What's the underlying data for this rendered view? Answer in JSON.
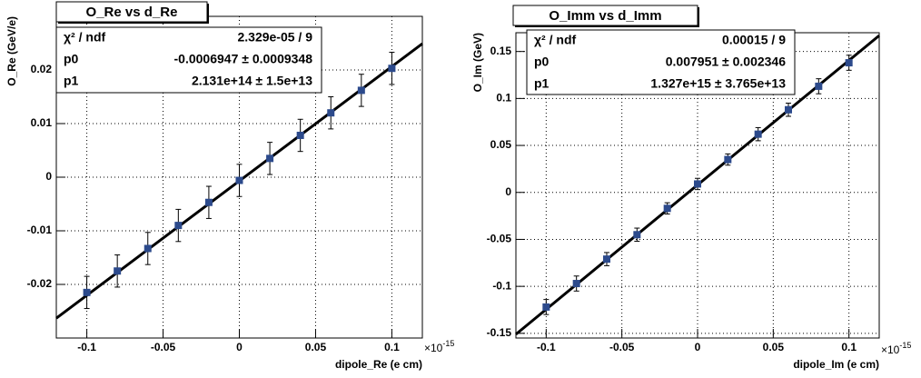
{
  "chart_data": [
    {
      "type": "scatter",
      "title": "O_Re vs d_Re",
      "x_label": "dipole_Re (e cm)",
      "y_label": "O_Re (GeV/e)",
      "x_scale_label": {
        "base": "×10",
        "exponent": "-15"
      },
      "stats": [
        [
          "χ² / ndf",
          "2.329e-05 / 9"
        ],
        [
          "p0",
          "-0.0006947 ± 0.0009348"
        ],
        [
          "p1",
          "2.131e+14 ± 1.5e+13"
        ]
      ],
      "x": [
        -0.1,
        -0.08,
        -0.06,
        -0.04,
        -0.02,
        0,
        0.02,
        0.04,
        0.06,
        0.08,
        0.1
      ],
      "values": [
        -0.0215,
        -0.0175,
        -0.0133,
        -0.009,
        -0.0047,
        -0.0006,
        0.0035,
        0.0078,
        0.012,
        0.0162,
        0.0203
      ],
      "errors": [
        0.003,
        0.003,
        0.003,
        0.003,
        0.003,
        0.003,
        0.003,
        0.003,
        0.003,
        0.003,
        0.003
      ],
      "color": "#2c4a8c",
      "fit": {
        "x": [
          -0.12,
          0.12
        ],
        "values": [
          -0.0263,
          0.0249
        ],
        "color": "#000000"
      },
      "xlim": [
        -0.12,
        0.12
      ],
      "ylim": [
        -0.03,
        0.03
      ],
      "xticks": [
        -0.1,
        -0.05,
        0,
        0.05,
        0.1
      ],
      "yticks": [
        -0.02,
        -0.01,
        0,
        0.01,
        0.02
      ],
      "grid": true
    },
    {
      "type": "scatter",
      "title": "O_Imm vs d_Imm",
      "x_label": "dipole_Im (e cm)",
      "y_label": "O_Im (GeV)",
      "x_scale_label": {
        "base": "×10",
        "exponent": "-15"
      },
      "stats": [
        [
          "χ² / ndf",
          "0.00015 / 9"
        ],
        [
          "p0",
          "0.007951 ± 0.002346"
        ],
        [
          "p1",
          "1.327e+15 ± 3.765e+13"
        ]
      ],
      "x": [
        -0.1,
        -0.08,
        -0.06,
        -0.04,
        -0.02,
        0,
        0.02,
        0.04,
        0.06,
        0.08,
        0.1
      ],
      "values": [
        -0.122,
        -0.097,
        -0.071,
        -0.045,
        -0.017,
        0.009,
        0.035,
        0.062,
        0.088,
        0.113,
        0.138
      ],
      "errors": [
        0.008,
        0.008,
        0.007,
        0.007,
        0.006,
        0.006,
        0.006,
        0.007,
        0.007,
        0.008,
        0.008
      ],
      "color": "#2c4a8c",
      "fit": {
        "x": [
          -0.12,
          0.12
        ],
        "values": [
          -0.151,
          0.167
        ],
        "color": "#000000"
      },
      "xlim": [
        -0.12,
        0.12
      ],
      "ylim": [
        -0.155,
        0.17
      ],
      "xticks": [
        -0.1,
        -0.05,
        0,
        0.05,
        0.1
      ],
      "yticks": [
        -0.15,
        -0.1,
        -0.05,
        0,
        0.05,
        0.1,
        0.15
      ],
      "grid": true
    }
  ]
}
